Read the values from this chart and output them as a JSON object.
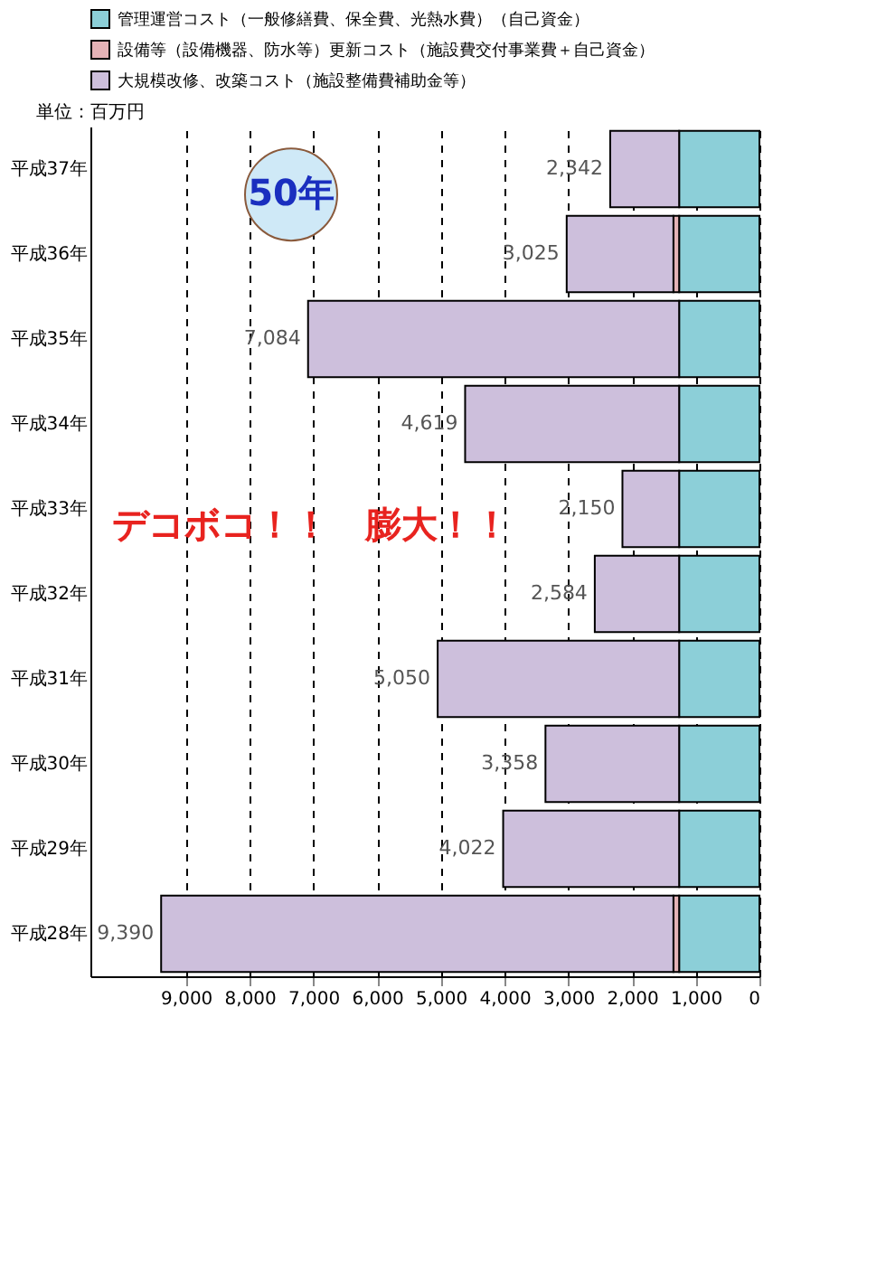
{
  "chart_data": {
    "type": "bar",
    "orientation": "horizontal",
    "stacked": true,
    "categories": [
      "平成37年",
      "平成36年",
      "平成35年",
      "平成34年",
      "平成33年",
      "平成32年",
      "平成31年",
      "平成30年",
      "平成29年",
      "平成28年"
    ],
    "series": [
      {
        "name": "管理運営コスト（一般修繕費、保全費、光熱水費）（自己資金）",
        "color": "#8ccfd8",
        "values": [
          1260,
          1260,
          1260,
          1260,
          1260,
          1260,
          1260,
          1260,
          1260,
          1260
        ]
      },
      {
        "name": "設備等（設備機器、防水等）更新コスト（施設費交付事業費＋自己資金）",
        "color": "#e4b2b6",
        "values": [
          null,
          90,
          null,
          null,
          null,
          null,
          null,
          null,
          null,
          90
        ]
      },
      {
        "name": "大規模改修、改築コスト（施設整備費補助金等）",
        "color": "#cdbfdc",
        "values": [
          1082,
          1675,
          5824,
          3359,
          890,
          1324,
          3790,
          2098,
          2762,
          8040
        ]
      }
    ],
    "totals": [
      "2,342",
      "3,025",
      "7,084",
      "4,619",
      "2,150",
      "2,584",
      "5,050",
      "3,358",
      "4,022",
      "9,390"
    ],
    "xlim": [
      10500,
      0
    ],
    "xticks": [
      {
        "value": 9000,
        "label": "9,000"
      },
      {
        "value": 8000,
        "label": "8,000"
      },
      {
        "value": 7000,
        "label": "7,000"
      },
      {
        "value": 6000,
        "label": "6,000"
      },
      {
        "value": 5000,
        "label": "5,000"
      },
      {
        "value": 4000,
        "label": "4,000"
      },
      {
        "value": 3000,
        "label": "3,000"
      },
      {
        "value": 2000,
        "label": "2,000"
      },
      {
        "value": 1000,
        "label": "1,000"
      },
      0
    ],
    "grid": "x",
    "legend": "top",
    "annotations": [
      "単位：百万円",
      "デコボコ！！　膨大！！",
      "50年"
    ]
  }
}
